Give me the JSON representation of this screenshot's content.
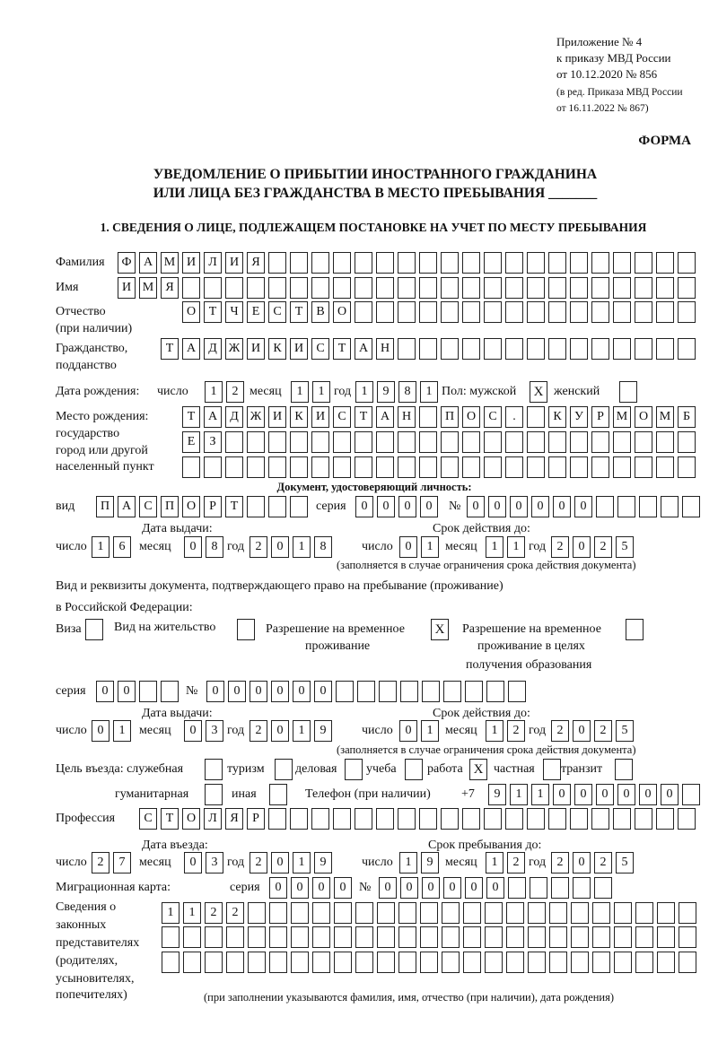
{
  "header": {
    "appendix": "Приложение № 4",
    "order1": "к приказу МВД России",
    "order2": "от 10.12.2020 № 856",
    "edit1": "(в ред. Приказа МВД России",
    "edit2": "от 16.11.2022 № 867)",
    "form": "ФОРМА"
  },
  "title": {
    "line1": "УВЕДОМЛЕНИЕ О ПРИБЫТИИ ИНОСТРАННОГО ГРАЖДАНИНА",
    "line2": "ИЛИ ЛИЦА БЕЗ ГРАЖДАНСТВА В МЕСТО ПРЕБЫВАНИЯ _______"
  },
  "section1": "1. СВЕДЕНИЯ О ЛИЦЕ, ПОДЛЕЖАЩЕМ ПОСТАНОВКЕ НА УЧЕТ ПО МЕСТУ ПРЕБЫВАНИЯ",
  "labels": {
    "surname": "Фамилия",
    "name": "Имя",
    "patronymic": "Отчество",
    "patronymic2": "(при наличии)",
    "citizenship": "Гражданство,",
    "citizenship2": "подданство",
    "birth_date": "Дата рождения:",
    "day": "число",
    "month": "месяц",
    "year": "год",
    "sex": "Пол: мужской",
    "female": "женский",
    "birthplace1": "Место рождения:",
    "birthplace2": "государство",
    "birthplace3": "город или другой",
    "birthplace4": "населенный пункт",
    "id_doc": "Документ, удостоверяющий личность:",
    "kind": "вид",
    "series": "серия",
    "number": "№",
    "issue_date": "Дата выдачи:",
    "valid_until": "Срок действия до:",
    "valid_note": "(заполняется в случае ограничения срока действия документа)",
    "right_doc1": "Вид и реквизиты документа, подтверждающего право на пребывание (проживание)",
    "right_doc2": "в Российской Федерации:",
    "visa": "Виза",
    "residence": "Вид на жительство",
    "temp1": "Разрешение на временное",
    "temp2": "проживание",
    "edu1": "Разрешение на временное",
    "edu2": "проживание в целях",
    "edu3": "получения образования",
    "purpose": "Цель въезда: служебная",
    "tourism": "туризм",
    "business": "деловая",
    "study": "учеба",
    "work": "работа",
    "private": "частная",
    "transit": "транзит",
    "humanitarian": "гуманитарная",
    "other": "иная",
    "phone": "Телефон (при наличии)",
    "phone_prefix": "+7",
    "profession": "Профессия",
    "entry_date": "Дата въезда:",
    "stay_until": "Срок пребывания до:",
    "migration_card": "Миграционная карта:",
    "reps1": "Сведения о",
    "reps2": "законных",
    "reps3": "представителях",
    "reps4": "(родителях,",
    "reps5": "усыновителях,",
    "reps6": "попечителях)",
    "reps_note": "(при заполнении указываются фамилия, имя, отчество (при наличии), дата рождения)"
  },
  "person": {
    "surname": "ФАМИЛИЯ",
    "name": "ИМЯ",
    "patronymic": "ОТЧЕСТВО",
    "citizenship": "ТАДЖИКИСТАН",
    "birth_day": "12",
    "birth_month": "11",
    "birth_year": "1981",
    "male": "X",
    "female": "",
    "birthplace1": "ТАДЖИКИСТАН ПОС. КУРМОМБ",
    "birthplace2": "ЕЗ",
    "birthplace3": ""
  },
  "id_document": {
    "kind": "ПАСПОРТ",
    "series": "0000",
    "number": "000000",
    "issue_day": "16",
    "issue_month": "08",
    "issue_year": "2018",
    "valid_day": "01",
    "valid_month": "11",
    "valid_year": "2025"
  },
  "right_document": {
    "visa": "",
    "residence": "",
    "temp_residence": "X",
    "temp_residence_edu": "",
    "series": "00",
    "number": "000000",
    "issue_day": "01",
    "issue_month": "03",
    "issue_year": "2019",
    "valid_day": "01",
    "valid_month": "12",
    "valid_year": "2025"
  },
  "purpose": {
    "official": "",
    "tourism": "",
    "business": "",
    "study": "",
    "work": "X",
    "private": "",
    "transit": "",
    "humanitarian": "",
    "other": ""
  },
  "phone": "911000000",
  "profession": "СТОЛЯР",
  "entry": {
    "day": "27",
    "month": "03",
    "year": "2019",
    "stay_day": "19",
    "stay_month": "12",
    "stay_year": "2025"
  },
  "migration_card": {
    "series": "0000",
    "number": "000000"
  },
  "representatives": {
    "row1": "1122",
    "row2": "",
    "row3": ""
  }
}
